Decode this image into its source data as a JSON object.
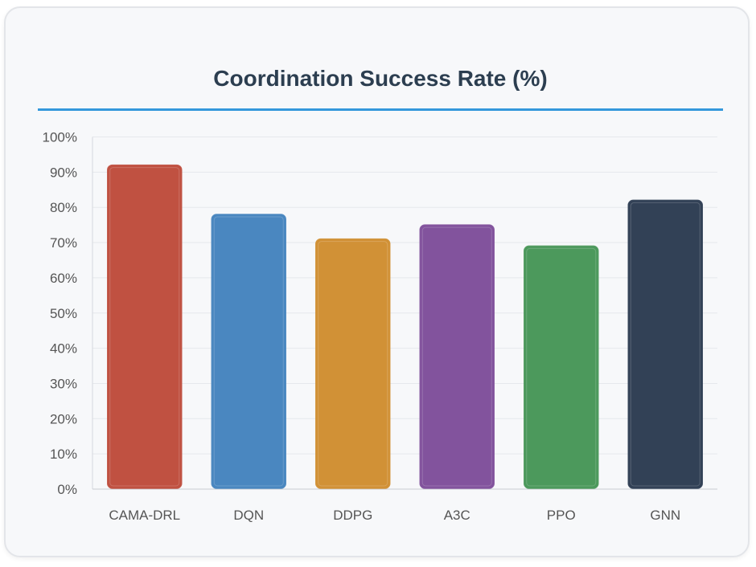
{
  "chart_data": {
    "type": "bar",
    "title": "Coordination Success Rate (%)",
    "categories": [
      "CAMA-DRL",
      "DQN",
      "DDPG",
      "A3C",
      "PPO",
      "GNN"
    ],
    "values": [
      92,
      78,
      71,
      75,
      69,
      82
    ],
    "colors": [
      "#d55a48",
      "#5296d5",
      "#e8a13c",
      "#915cae",
      "#55aa66",
      "#374860"
    ],
    "ylim": [
      0,
      100
    ],
    "yticks": [
      "0%",
      "10%",
      "20%",
      "30%",
      "40%",
      "50%",
      "60%",
      "70%",
      "80%",
      "90%",
      "100%"
    ],
    "grid": true,
    "xlabel": "",
    "ylabel": ""
  }
}
